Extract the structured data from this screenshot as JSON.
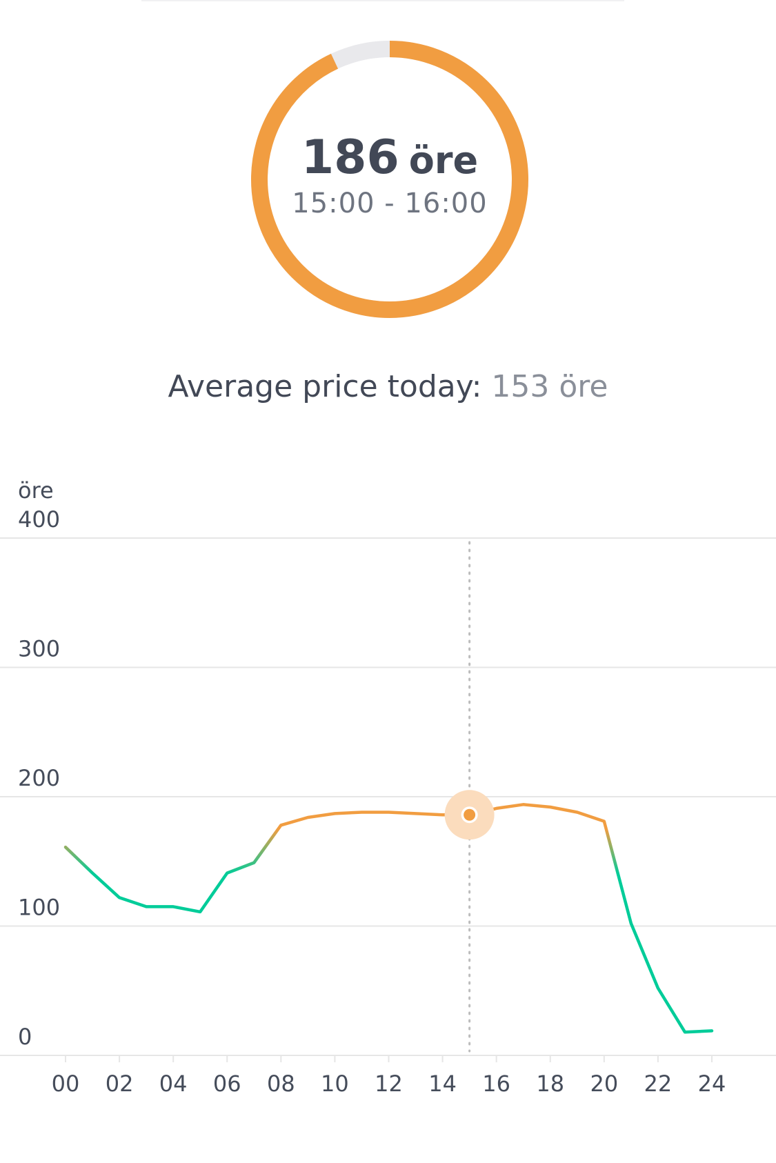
{
  "current_price": {
    "value": "186",
    "unit": "öre",
    "period": "15:00 - 16:00",
    "gauge_fraction": 0.93,
    "colors": {
      "fill": "#f19d41",
      "track": "#e9e9ec"
    }
  },
  "average": {
    "label": "Average price today:",
    "value": "153 öre"
  },
  "chart_data": {
    "type": "line",
    "y_unit_label": "öre",
    "ylim": [
      0,
      400
    ],
    "y_ticks": [
      0,
      100,
      200,
      300,
      400
    ],
    "x_ticks": [
      "00",
      "02",
      "04",
      "06",
      "08",
      "10",
      "12",
      "14",
      "16",
      "18",
      "20",
      "22",
      "24"
    ],
    "xlim": [
      0,
      24
    ],
    "grid": true,
    "series": [
      {
        "x": [
          0,
          1,
          2,
          3,
          4,
          5,
          6,
          7,
          8,
          9,
          10,
          11,
          12,
          13,
          14,
          15,
          16,
          17,
          18,
          19,
          20,
          21,
          22,
          23,
          24
        ],
        "values": [
          161,
          141,
          122,
          115,
          115,
          111,
          141,
          149,
          178,
          184,
          187,
          188,
          188,
          187,
          186,
          186,
          191,
          194,
          192,
          188,
          181,
          102,
          52,
          18,
          19
        ]
      }
    ],
    "highlight": {
      "x": 15,
      "value": 186
    },
    "colors": {
      "high": "#f19d41",
      "low": "#00cc99",
      "grid": "#e6e6e6",
      "marker_halo": "#fbdcbd",
      "cursor": "#bcbcbc"
    }
  }
}
